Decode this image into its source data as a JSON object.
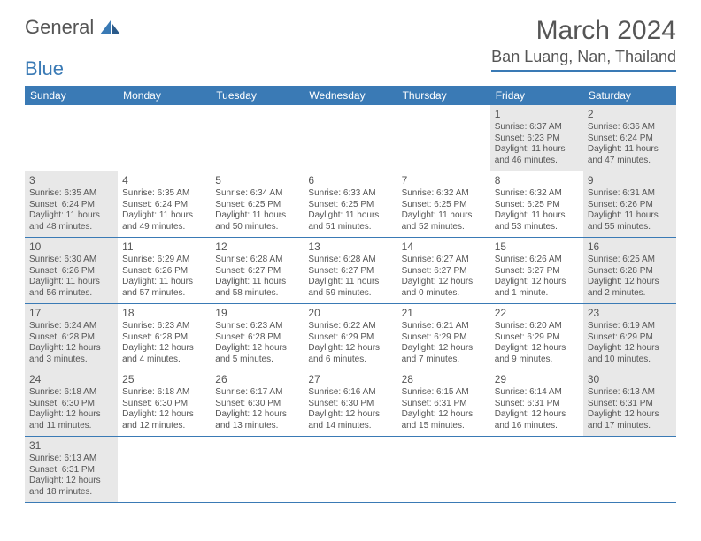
{
  "logo": {
    "text1": "General",
    "text2": "Blue"
  },
  "title": "March 2024",
  "location": "Ban Luang, Nan, Thailand",
  "weekdays": [
    "Sunday",
    "Monday",
    "Tuesday",
    "Wednesday",
    "Thursday",
    "Friday",
    "Saturday"
  ],
  "colors": {
    "accent": "#3a7ab5",
    "shade": "#e8e8e8",
    "text": "#555555"
  },
  "weeks": [
    [
      {
        "empty": true
      },
      {
        "empty": true
      },
      {
        "empty": true
      },
      {
        "empty": true
      },
      {
        "empty": true
      },
      {
        "n": "1",
        "sr": "Sunrise: 6:37 AM",
        "ss": "Sunset: 6:23 PM",
        "dl": "Daylight: 11 hours and 46 minutes.",
        "shade": true
      },
      {
        "n": "2",
        "sr": "Sunrise: 6:36 AM",
        "ss": "Sunset: 6:24 PM",
        "dl": "Daylight: 11 hours and 47 minutes.",
        "shade": true
      }
    ],
    [
      {
        "n": "3",
        "sr": "Sunrise: 6:35 AM",
        "ss": "Sunset: 6:24 PM",
        "dl": "Daylight: 11 hours and 48 minutes.",
        "shade": true
      },
      {
        "n": "4",
        "sr": "Sunrise: 6:35 AM",
        "ss": "Sunset: 6:24 PM",
        "dl": "Daylight: 11 hours and 49 minutes."
      },
      {
        "n": "5",
        "sr": "Sunrise: 6:34 AM",
        "ss": "Sunset: 6:25 PM",
        "dl": "Daylight: 11 hours and 50 minutes."
      },
      {
        "n": "6",
        "sr": "Sunrise: 6:33 AM",
        "ss": "Sunset: 6:25 PM",
        "dl": "Daylight: 11 hours and 51 minutes."
      },
      {
        "n": "7",
        "sr": "Sunrise: 6:32 AM",
        "ss": "Sunset: 6:25 PM",
        "dl": "Daylight: 11 hours and 52 minutes."
      },
      {
        "n": "8",
        "sr": "Sunrise: 6:32 AM",
        "ss": "Sunset: 6:25 PM",
        "dl": "Daylight: 11 hours and 53 minutes."
      },
      {
        "n": "9",
        "sr": "Sunrise: 6:31 AM",
        "ss": "Sunset: 6:26 PM",
        "dl": "Daylight: 11 hours and 55 minutes.",
        "shade": true
      }
    ],
    [
      {
        "n": "10",
        "sr": "Sunrise: 6:30 AM",
        "ss": "Sunset: 6:26 PM",
        "dl": "Daylight: 11 hours and 56 minutes.",
        "shade": true
      },
      {
        "n": "11",
        "sr": "Sunrise: 6:29 AM",
        "ss": "Sunset: 6:26 PM",
        "dl": "Daylight: 11 hours and 57 minutes."
      },
      {
        "n": "12",
        "sr": "Sunrise: 6:28 AM",
        "ss": "Sunset: 6:27 PM",
        "dl": "Daylight: 11 hours and 58 minutes."
      },
      {
        "n": "13",
        "sr": "Sunrise: 6:28 AM",
        "ss": "Sunset: 6:27 PM",
        "dl": "Daylight: 11 hours and 59 minutes."
      },
      {
        "n": "14",
        "sr": "Sunrise: 6:27 AM",
        "ss": "Sunset: 6:27 PM",
        "dl": "Daylight: 12 hours and 0 minutes."
      },
      {
        "n": "15",
        "sr": "Sunrise: 6:26 AM",
        "ss": "Sunset: 6:27 PM",
        "dl": "Daylight: 12 hours and 1 minute."
      },
      {
        "n": "16",
        "sr": "Sunrise: 6:25 AM",
        "ss": "Sunset: 6:28 PM",
        "dl": "Daylight: 12 hours and 2 minutes.",
        "shade": true
      }
    ],
    [
      {
        "n": "17",
        "sr": "Sunrise: 6:24 AM",
        "ss": "Sunset: 6:28 PM",
        "dl": "Daylight: 12 hours and 3 minutes.",
        "shade": true
      },
      {
        "n": "18",
        "sr": "Sunrise: 6:23 AM",
        "ss": "Sunset: 6:28 PM",
        "dl": "Daylight: 12 hours and 4 minutes."
      },
      {
        "n": "19",
        "sr": "Sunrise: 6:23 AM",
        "ss": "Sunset: 6:28 PM",
        "dl": "Daylight: 12 hours and 5 minutes."
      },
      {
        "n": "20",
        "sr": "Sunrise: 6:22 AM",
        "ss": "Sunset: 6:29 PM",
        "dl": "Daylight: 12 hours and 6 minutes."
      },
      {
        "n": "21",
        "sr": "Sunrise: 6:21 AM",
        "ss": "Sunset: 6:29 PM",
        "dl": "Daylight: 12 hours and 7 minutes."
      },
      {
        "n": "22",
        "sr": "Sunrise: 6:20 AM",
        "ss": "Sunset: 6:29 PM",
        "dl": "Daylight: 12 hours and 9 minutes."
      },
      {
        "n": "23",
        "sr": "Sunrise: 6:19 AM",
        "ss": "Sunset: 6:29 PM",
        "dl": "Daylight: 12 hours and 10 minutes.",
        "shade": true
      }
    ],
    [
      {
        "n": "24",
        "sr": "Sunrise: 6:18 AM",
        "ss": "Sunset: 6:30 PM",
        "dl": "Daylight: 12 hours and 11 minutes.",
        "shade": true
      },
      {
        "n": "25",
        "sr": "Sunrise: 6:18 AM",
        "ss": "Sunset: 6:30 PM",
        "dl": "Daylight: 12 hours and 12 minutes."
      },
      {
        "n": "26",
        "sr": "Sunrise: 6:17 AM",
        "ss": "Sunset: 6:30 PM",
        "dl": "Daylight: 12 hours and 13 minutes."
      },
      {
        "n": "27",
        "sr": "Sunrise: 6:16 AM",
        "ss": "Sunset: 6:30 PM",
        "dl": "Daylight: 12 hours and 14 minutes."
      },
      {
        "n": "28",
        "sr": "Sunrise: 6:15 AM",
        "ss": "Sunset: 6:31 PM",
        "dl": "Daylight: 12 hours and 15 minutes."
      },
      {
        "n": "29",
        "sr": "Sunrise: 6:14 AM",
        "ss": "Sunset: 6:31 PM",
        "dl": "Daylight: 12 hours and 16 minutes."
      },
      {
        "n": "30",
        "sr": "Sunrise: 6:13 AM",
        "ss": "Sunset: 6:31 PM",
        "dl": "Daylight: 12 hours and 17 minutes.",
        "shade": true
      }
    ],
    [
      {
        "n": "31",
        "sr": "Sunrise: 6:13 AM",
        "ss": "Sunset: 6:31 PM",
        "dl": "Daylight: 12 hours and 18 minutes.",
        "shade": true
      },
      {
        "empty": true
      },
      {
        "empty": true
      },
      {
        "empty": true
      },
      {
        "empty": true
      },
      {
        "empty": true
      },
      {
        "empty": true
      }
    ]
  ]
}
